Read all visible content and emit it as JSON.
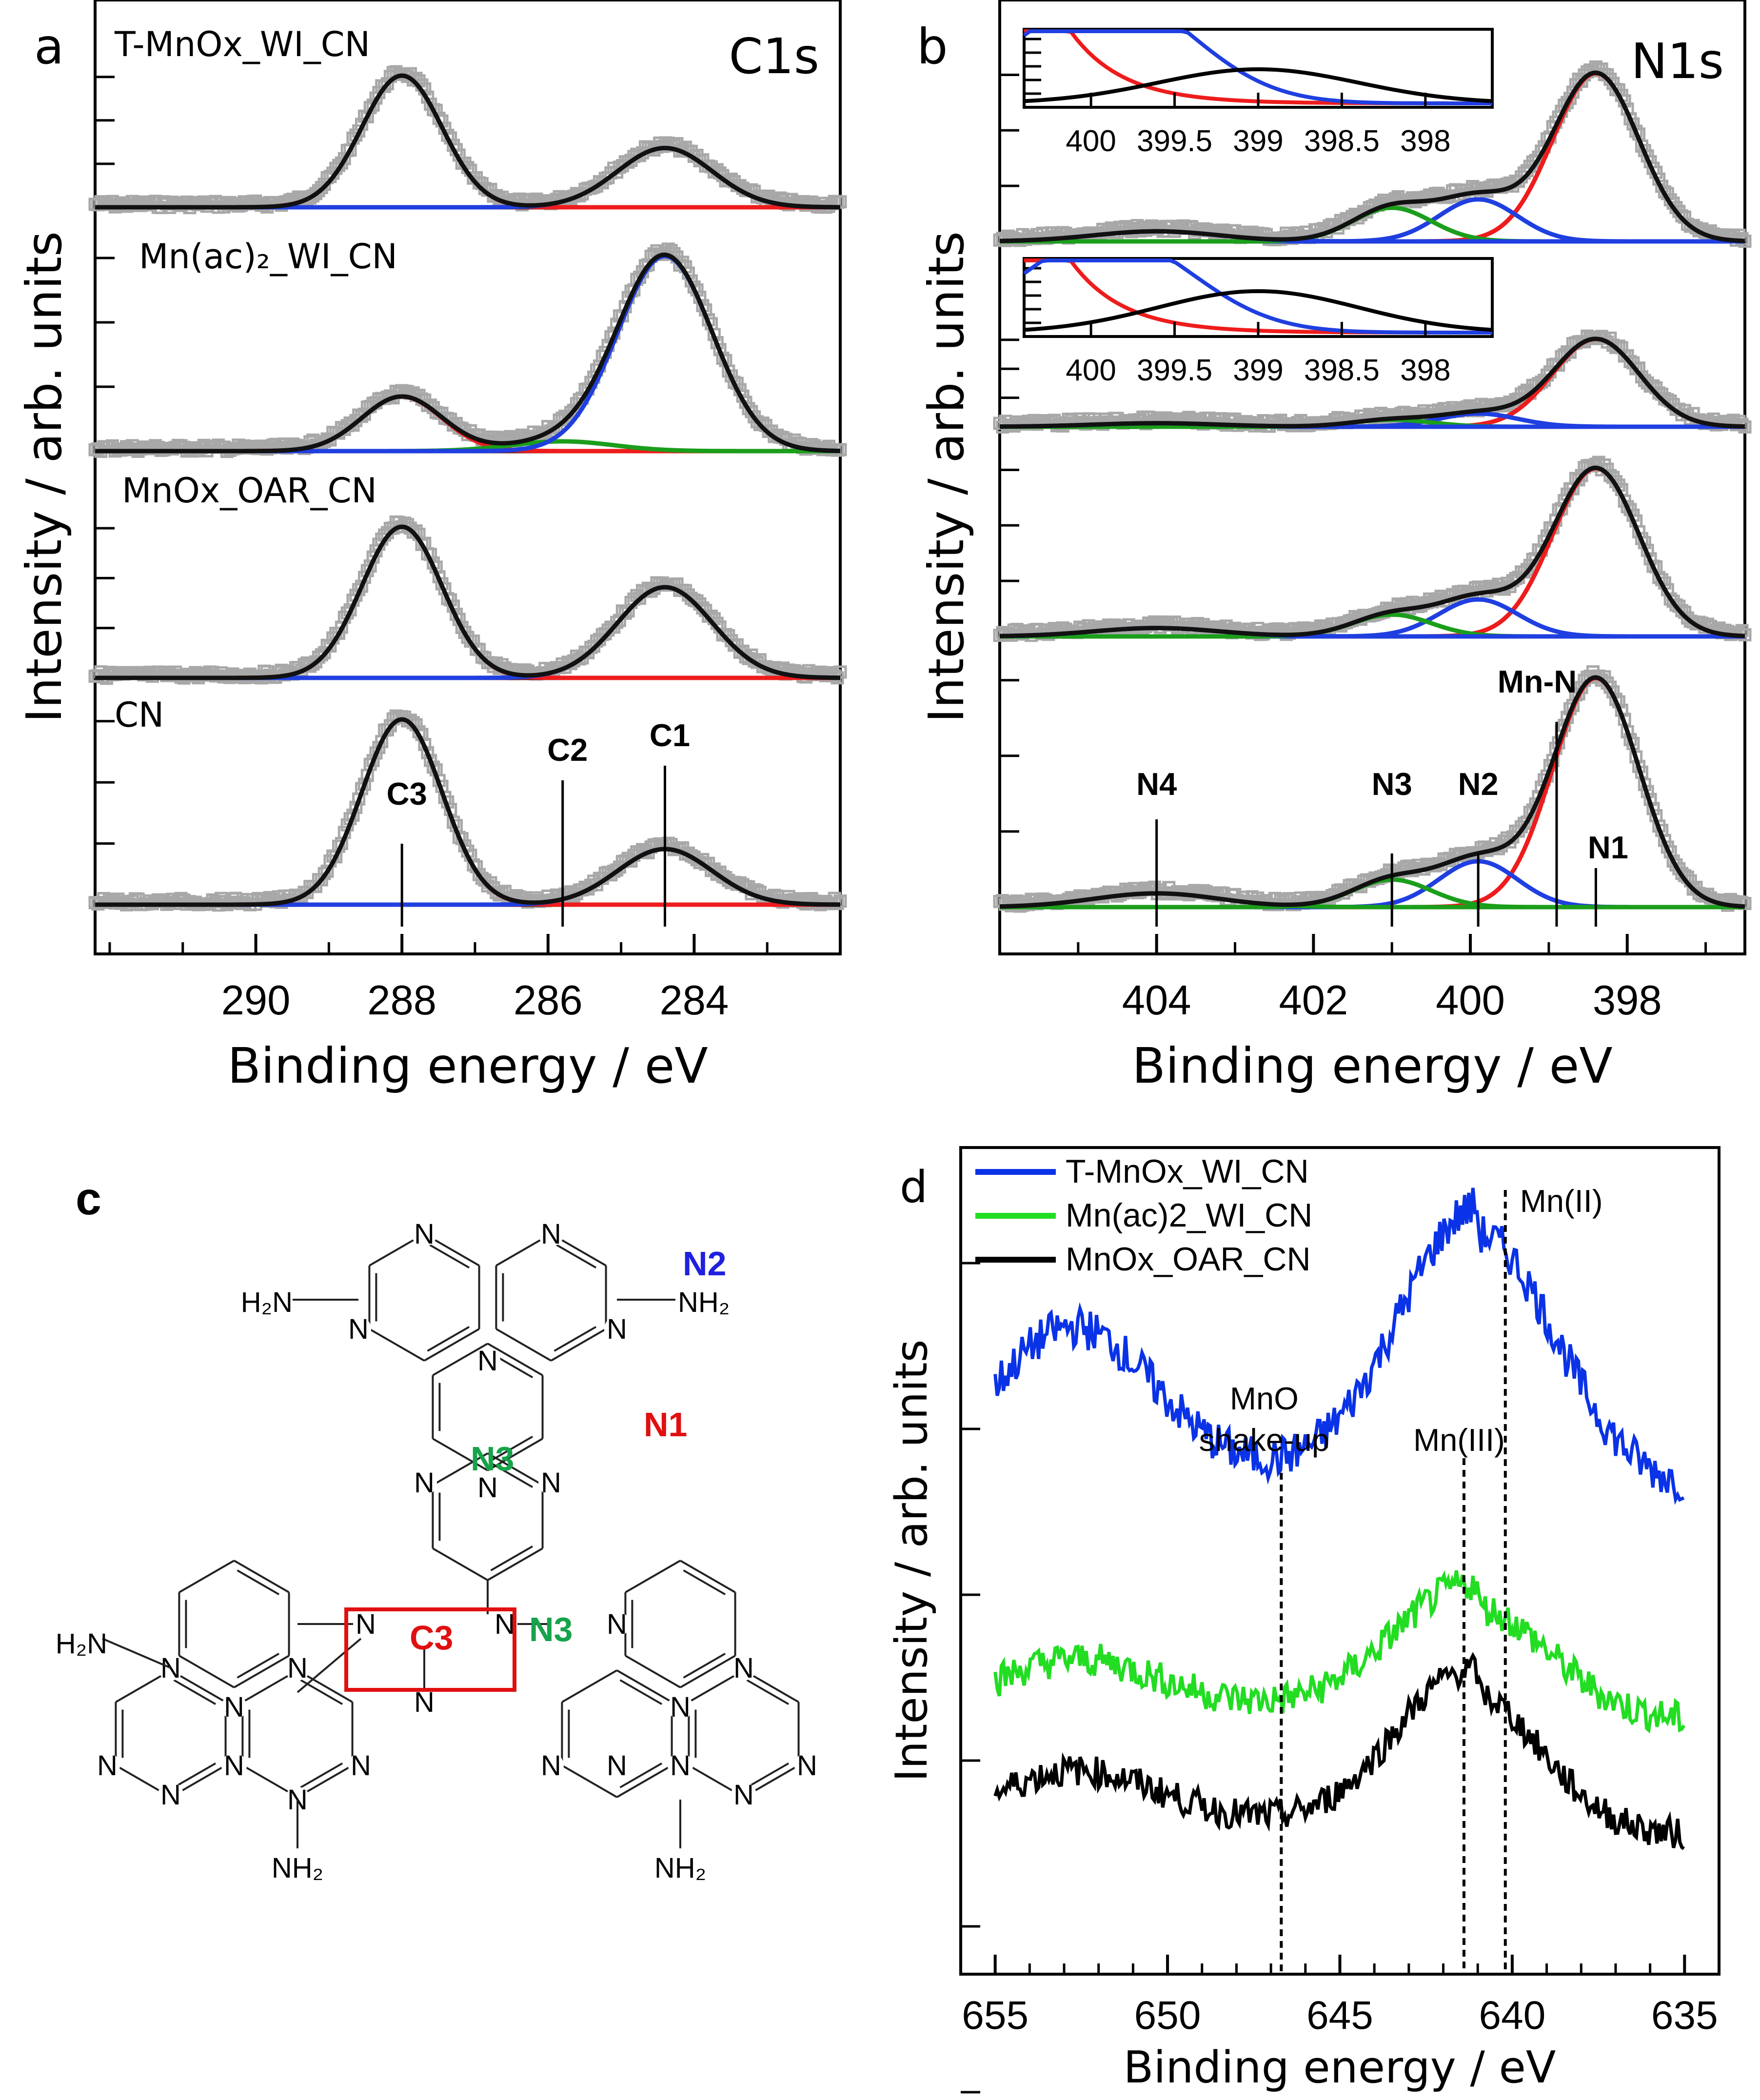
{
  "chart_data": [
    {
      "panel": "a",
      "type": "line",
      "title": "C1s",
      "xlabel": "Binding energy / eV",
      "ylabel": "Intensity / arb. units",
      "xlim": [
        292.2,
        282.0
      ],
      "xticks": [
        290,
        288,
        286,
        284
      ],
      "series_labels": [
        "T-MnOx_WI_CN",
        "Mn(ac)₂_WI_CN",
        "MnOx_OAR_CN",
        "CN"
      ],
      "peak_labels": [
        "C3",
        "C2",
        "C1"
      ],
      "peak_positions": [
        288.0,
        285.8,
        284.4
      ],
      "spectra": [
        {
          "name": "T-MnOx_WI_CN",
          "components": [
            {
              "center": 288.0,
              "height": 1.0,
              "width": 0.55,
              "color": "red"
            },
            {
              "center": 284.4,
              "height": 0.45,
              "width": 0.65,
              "color": "blue"
            }
          ]
        },
        {
          "name": "Mn(ac)₂_WI_CN",
          "components": [
            {
              "center": 288.0,
              "height": 0.28,
              "width": 0.55,
              "color": "red"
            },
            {
              "center": 285.8,
              "height": 0.05,
              "width": 0.7,
              "color": "green"
            },
            {
              "center": 284.4,
              "height": 1.0,
              "width": 0.65,
              "color": "blue"
            }
          ]
        },
        {
          "name": "MnOx_OAR_CN",
          "components": [
            {
              "center": 288.0,
              "height": 1.0,
              "width": 0.55,
              "color": "red"
            },
            {
              "center": 284.4,
              "height": 0.6,
              "width": 0.65,
              "color": "blue"
            }
          ]
        },
        {
          "name": "CN",
          "components": [
            {
              "center": 288.0,
              "height": 1.0,
              "width": 0.55,
              "color": "red"
            },
            {
              "center": 284.4,
              "height": 0.3,
              "width": 0.65,
              "color": "blue"
            }
          ]
        }
      ]
    },
    {
      "panel": "b",
      "type": "line",
      "title": "N1s",
      "xlabel": "Binding energy / eV",
      "ylabel": "Intensity / arb. units",
      "xlim": [
        406.0,
        396.5
      ],
      "xticks": [
        404,
        402,
        400,
        398
      ],
      "peak_labels": [
        "N4",
        "N3",
        "N2",
        "Mn-N",
        "N1"
      ],
      "peak_positions": [
        404.0,
        401.0,
        399.9,
        398.9,
        398.4
      ],
      "inset_xticks": [
        "400",
        "399.5",
        "399",
        "398.5",
        "398"
      ],
      "spectra": [
        {
          "name": "T-MnOx_WI_CN",
          "components": [
            {
              "center": 398.4,
              "height": 1.0,
              "width": 0.55,
              "color": "red"
            },
            {
              "center": 399.9,
              "height": 0.25,
              "width": 0.5,
              "color": "blue"
            },
            {
              "center": 401.0,
              "height": 0.2,
              "width": 0.5,
              "color": "green"
            },
            {
              "center": 404.0,
              "height": 0.06,
              "width": 0.8,
              "color": "blue"
            }
          ]
        },
        {
          "name": "Mn(ac)₂_WI_CN",
          "components": [
            {
              "center": 398.4,
              "height": 1.0,
              "width": 0.55,
              "color": "red"
            },
            {
              "center": 399.9,
              "height": 0.15,
              "width": 0.5,
              "color": "blue"
            },
            {
              "center": 401.0,
              "height": 0.08,
              "width": 0.5,
              "color": "green"
            },
            {
              "center": 404.0,
              "height": 0.04,
              "width": 0.8,
              "color": "blue"
            }
          ]
        },
        {
          "name": "MnOx_OAR_CN",
          "components": [
            {
              "center": 398.4,
              "height": 1.0,
              "width": 0.55,
              "color": "red"
            },
            {
              "center": 399.9,
              "height": 0.22,
              "width": 0.5,
              "color": "blue"
            },
            {
              "center": 401.0,
              "height": 0.13,
              "width": 0.5,
              "color": "green"
            },
            {
              "center": 404.0,
              "height": 0.05,
              "width": 0.8,
              "color": "blue"
            }
          ]
        },
        {
          "name": "CN",
          "components": [
            {
              "center": 398.4,
              "height": 1.0,
              "width": 0.55,
              "color": "red"
            },
            {
              "center": 399.9,
              "height": 0.2,
              "width": 0.5,
              "color": "blue"
            },
            {
              "center": 401.0,
              "height": 0.12,
              "width": 0.5,
              "color": "green"
            },
            {
              "center": 404.0,
              "height": 0.06,
              "width": 0.8,
              "color": "green"
            }
          ]
        }
      ]
    },
    {
      "panel": "d",
      "type": "line",
      "xlabel": "Binding energy / eV",
      "ylabel": "Intensity / arb. units",
      "xlim": [
        656,
        634
      ],
      "xticks": [
        655,
        650,
        645,
        640,
        635
      ],
      "legend": [
        "T-MnOx_WI_CN",
        "Mn(ac)2_WI_CN",
        "MnOx_OAR_CN"
      ],
      "legend_colors": [
        "#0a32e6",
        "#22dd22",
        "#000000"
      ],
      "markers": [
        {
          "label": "MnO\nshake-up",
          "x": 646.7
        },
        {
          "label": "Mn(III)",
          "x": 641.4
        },
        {
          "label": "Mn(II)",
          "x": 640.2
        }
      ],
      "series": [
        {
          "name": "T-MnOx_WI_CN",
          "baseline": 0.62,
          "peaks": [
            {
              "center": 652.8,
              "height": 0.62,
              "width": 1.5
            },
            {
              "center": 641.0,
              "height": 1.0,
              "width": 1.4
            }
          ]
        },
        {
          "name": "Mn(ac)2_WI_CN",
          "baseline": 0.55,
          "peaks": [
            {
              "center": 652.8,
              "height": 0.28,
              "width": 1.6
            },
            {
              "center": 641.2,
              "height": 0.55,
              "width": 1.4
            }
          ]
        },
        {
          "name": "MnOx_OAR_CN",
          "baseline": 0.42,
          "peaks": [
            {
              "center": 652.8,
              "height": 0.32,
              "width": 1.6
            },
            {
              "center": 641.3,
              "height": 0.75,
              "width": 1.3
            }
          ]
        }
      ]
    }
  ],
  "panels": {
    "a": "a",
    "b": "b",
    "c": "c",
    "d": "d"
  },
  "panel_c": {
    "labels": {
      "n2": "N2",
      "n1": "N1",
      "n3a": "N3",
      "n3b": "N3",
      "c3": "C3"
    },
    "atom": "N",
    "h2n": "H₂N",
    "nh2": "NH₂"
  },
  "colors": {
    "red": "#ee1c1c",
    "blue": "#1f3fe0",
    "green": "#1b9e1b",
    "label_red": "#e01010",
    "label_blue": "#2020e0",
    "label_green": "#16a34a"
  }
}
